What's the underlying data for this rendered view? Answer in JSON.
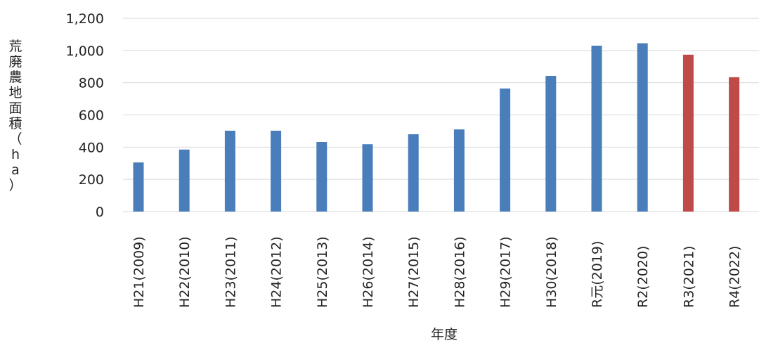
{
  "chart_data": {
    "type": "bar",
    "title": "",
    "xlabel": "年度",
    "ylabel": "荒廃農地面積（ha）",
    "ylim": [
      0,
      1200
    ],
    "yticks": [
      "0",
      "200",
      "400",
      "600",
      "800",
      "1,000",
      "1,200"
    ],
    "ytick_values": [
      0,
      200,
      400,
      600,
      800,
      1000,
      1200
    ],
    "grid": true,
    "categories": [
      "H21(2009)",
      "H22(2010)",
      "H23(2011)",
      "H24(2012)",
      "H25(2013)",
      "H26(2014)",
      "H27(2015)",
      "H28(2016)",
      "H29(2017)",
      "H30(2018)",
      "R元(2019)",
      "R2(2020)",
      "R3(2021)",
      "R4(2022)"
    ],
    "values": [
      305,
      385,
      502,
      502,
      432,
      418,
      480,
      510,
      764,
      842,
      1030,
      1045,
      974,
      834
    ],
    "colors": [
      "#4a7ebb",
      "#4a7ebb",
      "#4a7ebb",
      "#4a7ebb",
      "#4a7ebb",
      "#4a7ebb",
      "#4a7ebb",
      "#4a7ebb",
      "#4a7ebb",
      "#4a7ebb",
      "#4a7ebb",
      "#4a7ebb",
      "#be4b48",
      "#be4b48"
    ]
  }
}
